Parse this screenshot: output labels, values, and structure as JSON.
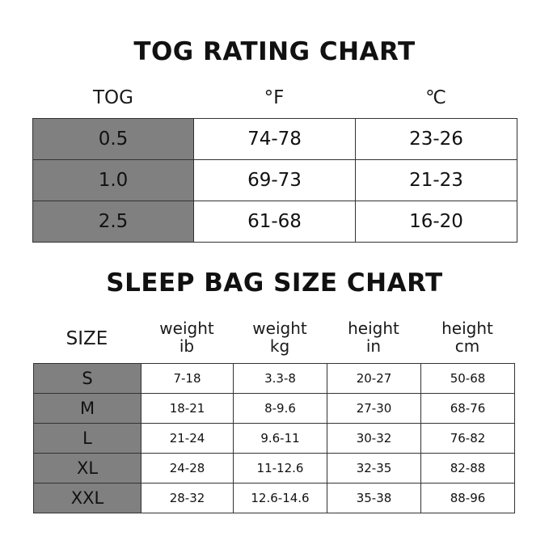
{
  "tog_chart": {
    "title": "TOG RATING CHART",
    "headers": [
      "TOG",
      "°F",
      "℃"
    ],
    "rows": [
      [
        "0.5",
        "74-78",
        "23-26"
      ],
      [
        "1.0",
        "69-73",
        "21-23"
      ],
      [
        "2.5",
        "61-68",
        "16-20"
      ]
    ]
  },
  "size_chart": {
    "title": "SLEEP BAG SIZE CHART",
    "headers": [
      [
        "SIZE",
        ""
      ],
      [
        "weight",
        "ib"
      ],
      [
        "weight",
        "kg"
      ],
      [
        "height",
        "in"
      ],
      [
        "height",
        "cm"
      ]
    ],
    "rows": [
      [
        "S",
        "7-18",
        "3.3-8",
        "20-27",
        "50-68"
      ],
      [
        "M",
        "18-21",
        "8-9.6",
        "27-30",
        "68-76"
      ],
      [
        "L",
        "21-24",
        "9.6-11",
        "30-32",
        "76-82"
      ],
      [
        "XL",
        "24-28",
        "11-12.6",
        "32-35",
        "82-88"
      ],
      [
        "XXL",
        "28-32",
        "12.6-14.6",
        "35-38",
        "88-96"
      ]
    ]
  },
  "colors": {
    "label_cell": "#808080",
    "border": "#333333"
  }
}
